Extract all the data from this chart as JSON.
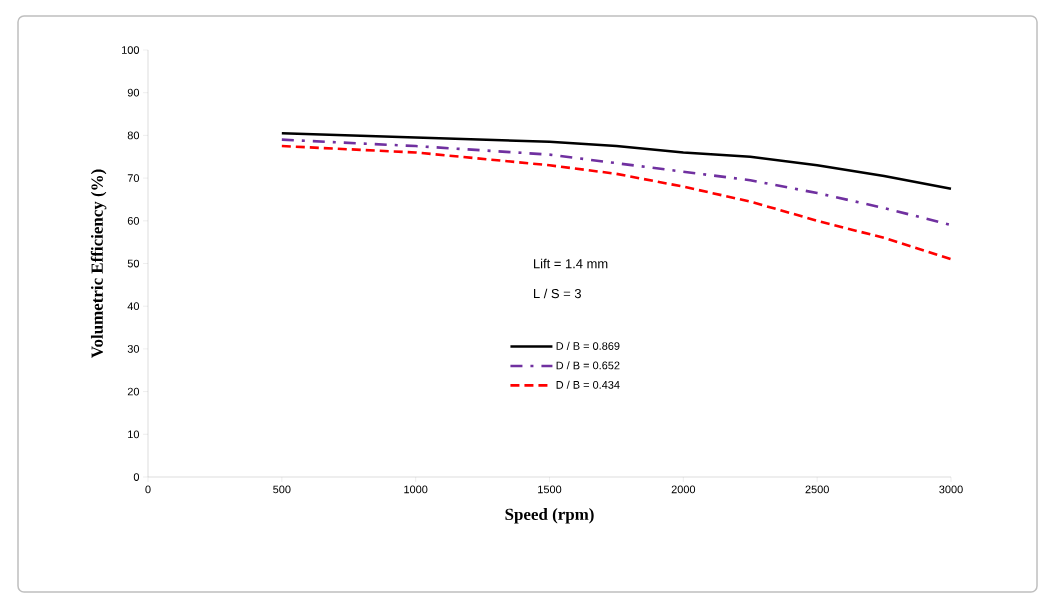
{
  "chart_data": {
    "type": "line",
    "xlabel": "Speed (rpm)",
    "ylabel": "Volumetric Efficiency (%)",
    "x": [
      500,
      1000,
      1500,
      1750,
      2000,
      2250,
      2500,
      2750,
      3000
    ],
    "series": [
      {
        "name": "D / B = 0.869",
        "color": "#000000",
        "line_style": "solid",
        "values": [
          80.5,
          79.5,
          78.5,
          77.5,
          76,
          75,
          73,
          70.5,
          67.5
        ]
      },
      {
        "name": "D / B = 0.652",
        "color": "#7030a0",
        "line_style": "dashdot",
        "values": [
          79,
          77.5,
          75.5,
          73.5,
          71.5,
          69.5,
          66.5,
          63,
          59
        ]
      },
      {
        "name": "D / B = 0.434",
        "color": "#ff0000",
        "line_style": "dashed",
        "values": [
          77.5,
          76,
          73,
          71,
          68,
          64.5,
          60,
          56,
          51
        ]
      }
    ],
    "xlim": [
      0,
      3000
    ],
    "xticks": [
      0,
      500,
      1000,
      1500,
      2000,
      2500,
      3000
    ],
    "ylim": [
      0,
      100
    ],
    "yticks": [
      0,
      10,
      20,
      30,
      40,
      50,
      60,
      70,
      80,
      90,
      100
    ],
    "grid": false,
    "legend": "center",
    "marker": "none",
    "annotations": [
      "Lift = 1.4 mm",
      "L / S = 3"
    ]
  }
}
